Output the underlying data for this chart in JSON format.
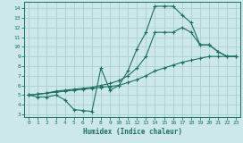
{
  "bg_color": "#cce8e8",
  "grid_color": "#aad0d0",
  "line_color": "#1a7060",
  "xlim": [
    -0.5,
    23.5
  ],
  "ylim": [
    2.7,
    14.7
  ],
  "yticks": [
    3,
    4,
    5,
    6,
    7,
    8,
    9,
    10,
    11,
    12,
    13,
    14
  ],
  "xticks": [
    0,
    1,
    2,
    3,
    4,
    5,
    6,
    7,
    8,
    9,
    10,
    11,
    12,
    13,
    14,
    15,
    16,
    17,
    18,
    19,
    20,
    21,
    22,
    23
  ],
  "xlabel": "Humidex (Indice chaleur)",
  "curve1_x": [
    0,
    1,
    2,
    3,
    4,
    5,
    6,
    7,
    8,
    9,
    10,
    11,
    12,
    13,
    14,
    15,
    16,
    17,
    18,
    19,
    20,
    21,
    22,
    23
  ],
  "curve1_y": [
    5.0,
    4.8,
    4.8,
    5.0,
    4.5,
    3.5,
    3.4,
    3.3,
    7.8,
    5.5,
    6.0,
    7.5,
    9.8,
    11.5,
    14.2,
    14.2,
    14.2,
    13.3,
    12.5,
    10.2,
    10.2,
    9.5,
    9.0,
    9.0
  ],
  "curve2_x": [
    0,
    1,
    2,
    3,
    4,
    5,
    6,
    7,
    8,
    9,
    10,
    11,
    12,
    13,
    14,
    15,
    16,
    17,
    18,
    19,
    20,
    21,
    22,
    23
  ],
  "curve2_y": [
    5.0,
    5.1,
    5.2,
    5.4,
    5.5,
    5.6,
    5.7,
    5.8,
    6.0,
    6.2,
    6.5,
    7.0,
    7.8,
    9.0,
    11.5,
    11.5,
    11.5,
    12.0,
    11.5,
    10.2,
    10.2,
    9.5,
    9.0,
    9.0
  ],
  "curve3_x": [
    0,
    1,
    2,
    3,
    4,
    5,
    6,
    7,
    8,
    9,
    10,
    11,
    12,
    13,
    14,
    15,
    16,
    17,
    18,
    19,
    20,
    21,
    22,
    23
  ],
  "curve3_y": [
    5.0,
    5.1,
    5.2,
    5.3,
    5.4,
    5.5,
    5.6,
    5.7,
    5.8,
    5.9,
    6.0,
    6.3,
    6.6,
    7.0,
    7.5,
    7.8,
    8.1,
    8.4,
    8.6,
    8.8,
    9.0,
    9.0,
    9.0,
    9.0
  ]
}
